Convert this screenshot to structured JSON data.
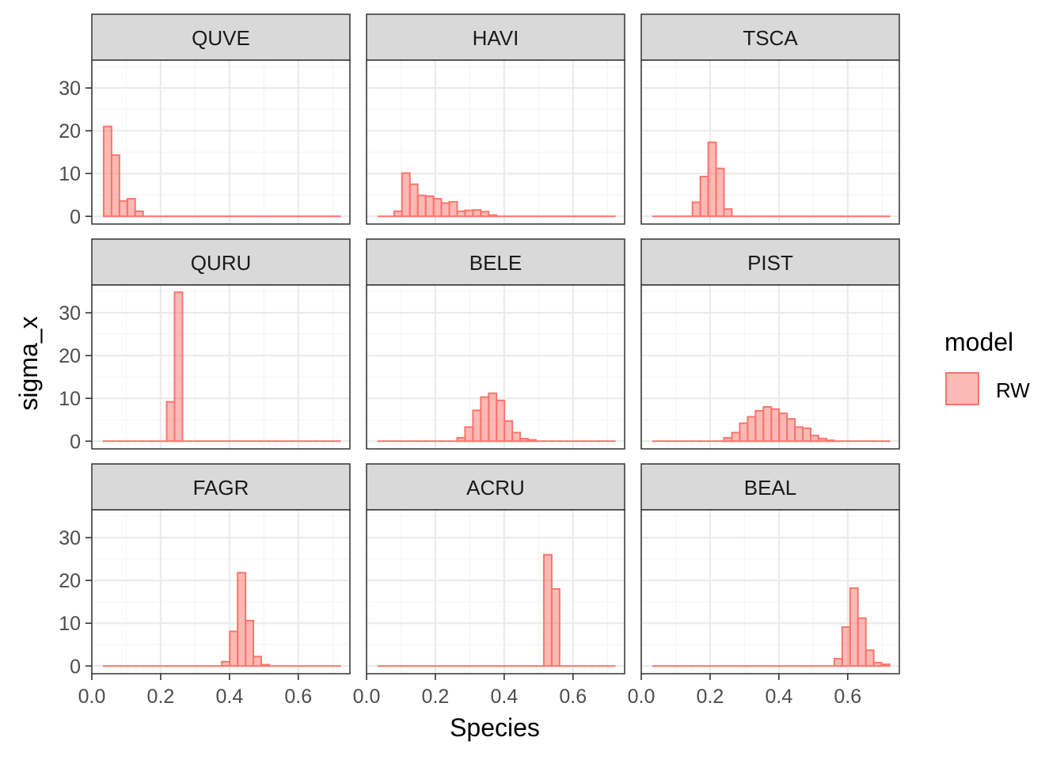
{
  "chart_data": {
    "type": "bar",
    "subtype": "faceted histogram",
    "xlabel": "Species",
    "ylabel": "sigma_x",
    "xlim": [
      0,
      0.75
    ],
    "ylim": [
      -1.8,
      36.5
    ],
    "x_ticks": [
      "0.0",
      "0.2",
      "0.4",
      "0.6"
    ],
    "x_tick_values": [
      0,
      0.2,
      0.4,
      0.6
    ],
    "y_ticks": [
      "0",
      "10",
      "20",
      "30"
    ],
    "y_tick_values": [
      0,
      10,
      20,
      30
    ],
    "grid": true,
    "bin_width": 0.0229,
    "legend": {
      "title": "model",
      "items": [
        "RW"
      ],
      "position": "right"
    },
    "colors": {
      "fill": "#F8766D",
      "fill_opacity": 0.5,
      "stroke": "#F8766D",
      "strip_bg": "#D9D9D9",
      "grid_major": "#EBEBEB",
      "grid_minor": "#F5F5F5"
    },
    "facets": [
      {
        "name": "QUVE",
        "bins": [
          [
            0.0521,
            21
          ],
          [
            0.075,
            14.3
          ],
          [
            0.0979,
            3.6
          ],
          [
            0.1208,
            4.1
          ],
          [
            0.1437,
            1.2
          ]
        ]
      },
      {
        "name": "HAVI",
        "bins": [
          [
            0.0979,
            1.2
          ],
          [
            0.1208,
            10.1
          ],
          [
            0.1437,
            7.5
          ],
          [
            0.1666,
            4.9
          ],
          [
            0.1895,
            4.7
          ],
          [
            0.2124,
            4.1
          ],
          [
            0.2353,
            3.1
          ],
          [
            0.2582,
            3.4
          ],
          [
            0.2811,
            1.2
          ],
          [
            0.304,
            1.4
          ],
          [
            0.3269,
            1.5
          ],
          [
            0.3498,
            1.1
          ],
          [
            0.3727,
            0.3
          ]
        ]
      },
      {
        "name": "TSCA",
        "bins": [
          [
            0.1666,
            3.3
          ],
          [
            0.1895,
            9.3
          ],
          [
            0.2124,
            17.3
          ],
          [
            0.2353,
            11.2
          ],
          [
            0.2582,
            1.7
          ]
        ]
      },
      {
        "name": "QURU",
        "bins": [
          [
            0.2353,
            9.2
          ],
          [
            0.2582,
            34.8
          ]
        ]
      },
      {
        "name": "BELE",
        "bins": [
          [
            0.2811,
            0.8
          ],
          [
            0.304,
            3.3
          ],
          [
            0.3269,
            7.2
          ],
          [
            0.3498,
            10.3
          ],
          [
            0.3727,
            11.2
          ],
          [
            0.3956,
            9.5
          ],
          [
            0.4185,
            4.7
          ],
          [
            0.4414,
            2.0
          ],
          [
            0.4643,
            0.6
          ],
          [
            0.4872,
            0.3
          ]
        ]
      },
      {
        "name": "PIST",
        "bins": [
          [
            0.2582,
            0.8
          ],
          [
            0.2811,
            2.0
          ],
          [
            0.304,
            4.2
          ],
          [
            0.3269,
            5.7
          ],
          [
            0.3498,
            7.1
          ],
          [
            0.3727,
            8.0
          ],
          [
            0.3956,
            7.5
          ],
          [
            0.4185,
            6.5
          ],
          [
            0.4414,
            5.2
          ],
          [
            0.4643,
            3.3
          ],
          [
            0.4872,
            3.0
          ],
          [
            0.5101,
            1.3
          ],
          [
            0.533,
            0.6
          ],
          [
            0.5559,
            0.2
          ]
        ]
      },
      {
        "name": "FAGR",
        "bins": [
          [
            0.3956,
            1.0
          ],
          [
            0.4185,
            8.1
          ],
          [
            0.4414,
            21.8
          ],
          [
            0.4643,
            10.6
          ],
          [
            0.4872,
            2.2
          ],
          [
            0.5101,
            0.3
          ]
        ]
      },
      {
        "name": "ACRU",
        "bins": [
          [
            0.533,
            26.0
          ],
          [
            0.5559,
            18.0
          ]
        ]
      },
      {
        "name": "BEAL",
        "bins": [
          [
            0.5788,
            1.7
          ],
          [
            0.6017,
            9.1
          ],
          [
            0.6246,
            18.2
          ],
          [
            0.6475,
            11.2
          ],
          [
            0.6704,
            3.7
          ],
          [
            0.6933,
            0.8
          ],
          [
            0.7162,
            0.4
          ]
        ]
      }
    ]
  }
}
